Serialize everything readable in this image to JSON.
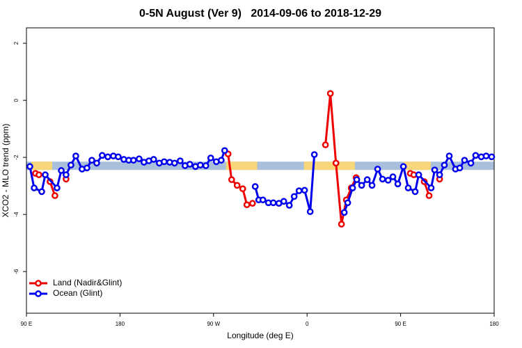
{
  "chart_data": {
    "type": "line",
    "title": "0-5N August (Ver 9)   2014-09-06 to 2018-12-29",
    "xlabel": "Longitude (deg E)",
    "ylabel": "XCO2 - MLO trend (ppm)",
    "xlim": [
      90,
      540
    ],
    "ylim": [
      -7.46,
      2.54
    ],
    "xticks": [
      {
        "value": 90,
        "label": "90 E"
      },
      {
        "value": 180,
        "label": "180"
      },
      {
        "value": 270,
        "label": "90 W"
      },
      {
        "value": 360,
        "label": "0"
      },
      {
        "value": 450,
        "label": "90 E"
      },
      {
        "value": 540,
        "label": "180"
      }
    ],
    "yticks": [
      -6,
      -4,
      -2,
      0,
      2
    ],
    "legend": "bottomleft",
    "band": {
      "range": [
        -2.44,
        -2.15
      ],
      "color": "#a9bfdc",
      "highlight_color": "#f7d77a",
      "highlights": [
        [
          94.7,
          114.8
        ],
        [
          282,
          312
        ],
        [
          357,
          406
        ],
        [
          452.7,
          479
        ]
      ]
    },
    "series": [
      {
        "name": "Land (Nadir&Glint)",
        "color": "#ee0000",
        "x": [
          98.7,
          102.0,
          107,
          112.7,
          117.4,
          123,
          128.1,
          200,
          284.0,
          287.4,
          292.7,
          298.1,
          302.1,
          307.5,
          340,
          377.7,
          382.4,
          387.8,
          393.1,
          397.8,
          402.5,
          407.2,
          430,
          459.3,
          462.7,
          468,
          472.7,
          477.4,
          483,
          487.5
        ],
        "values": [
          -2.56,
          -2.61,
          null,
          -2.85,
          -3.34,
          null,
          -2.76,
          null,
          -1.88,
          -2.78,
          -2.98,
          -3.1,
          -3.66,
          -3.61,
          null,
          -1.56,
          0.24,
          -2.2,
          -4.34,
          -3.49,
          -3.07,
          -2.71,
          null,
          -2.56,
          -2.61,
          null,
          -2.85,
          -3.34,
          null,
          -2.76
        ]
      },
      {
        "name": "Ocean (Glint)",
        "color": "#0000ee",
        "x": [
          93.3,
          97.4,
          104.7,
          108.1,
          119.4,
          123.5,
          128.1,
          132.8,
          137.5,
          143.5,
          148.2,
          152.9,
          157.6,
          162.9,
          168.3,
          173.6,
          178.3,
          183.7,
          188.4,
          193.0,
          198.4,
          203.1,
          207.8,
          212.4,
          217.8,
          222.5,
          227.8,
          232.5,
          237.9,
          242.6,
          247.2,
          252.6,
          257.3,
          262.6,
          267.3,
          272.7,
          277.4,
          280.7,
          295,
          310.1,
          313.5,
          317.5,
          322.8,
          327.5,
          332.9,
          337.6,
          342.9,
          347.6,
          352.3,
          357.6,
          363.0,
          367.0,
          380,
          395.8,
          399.1,
          403.8,
          407.8,
          412.5,
          417.9,
          422.5,
          427.9,
          432.6,
          438.0,
          442.6,
          447.3,
          452.7,
          457.3,
          464.0,
          467.4,
          479.4,
          482.8,
          487.5,
          492.1,
          496.8,
          502.8,
          506.9,
          511.5,
          517.6,
          522.2,
          527.6,
          532.3,
          537.6
        ],
        "values": [
          -2.32,
          -3.07,
          -3.2,
          -2.61,
          -3.07,
          -2.46,
          -2.61,
          -2.27,
          -1.95,
          -2.41,
          -2.37,
          -2.1,
          -2.2,
          -1.93,
          -1.98,
          -1.95,
          -1.98,
          -2.07,
          -2.1,
          -2.1,
          -2.05,
          -2.17,
          -2.12,
          -2.07,
          -2.2,
          -2.15,
          -2.17,
          -2.2,
          -2.12,
          -2.29,
          -2.24,
          -2.32,
          -2.27,
          -2.29,
          -2.02,
          -2.15,
          -2.1,
          -1.76,
          null,
          -3.02,
          -3.49,
          -3.49,
          -3.59,
          -3.59,
          -3.61,
          -3.54,
          -3.68,
          -3.37,
          -3.17,
          -3.15,
          -3.9,
          -1.9,
          null,
          -3.93,
          -3.59,
          -3.07,
          -2.78,
          -2.98,
          -2.78,
          -2.98,
          -2.41,
          -2.76,
          -2.8,
          -2.68,
          -2.93,
          -2.32,
          -3.07,
          -3.2,
          -2.61,
          -3.07,
          -2.44,
          -2.61,
          -2.27,
          -1.95,
          -2.41,
          -2.37,
          -2.1,
          -2.2,
          -1.93,
          -1.98,
          -1.95,
          -1.98
        ]
      }
    ]
  }
}
